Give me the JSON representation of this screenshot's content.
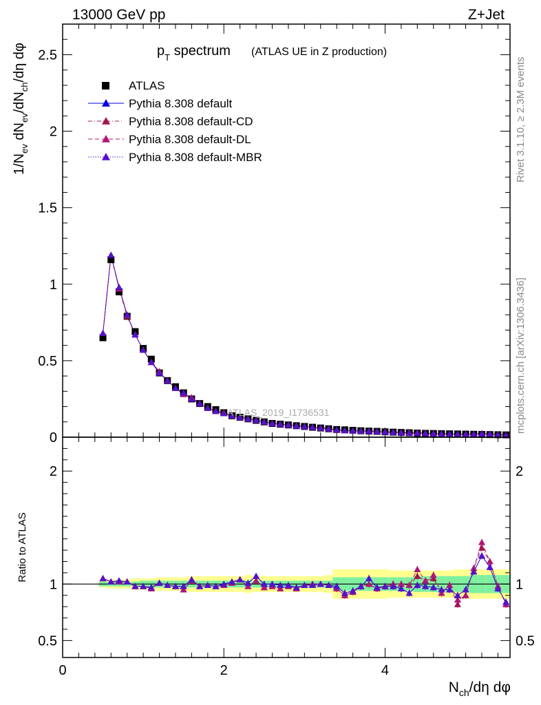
{
  "header": {
    "energy_label": "13000 GeV pp",
    "process_label": "Z+Jet"
  },
  "title": {
    "main_prefix": "p",
    "main_sub": "T",
    "main_suffix": " spectrum",
    "detail": "(ATLAS UE in Z production)"
  },
  "side_labels": {
    "rivet": "Rivet 3.1.10, ≥ 2.3M events",
    "mcplots": "mcplots.cern.ch [arXiv:1306.3436]"
  },
  "watermark": "ATLAS_2019_I1736531",
  "legend": [
    {
      "label": "ATLAS",
      "marker": "square",
      "color": "#000000",
      "line": "none"
    },
    {
      "label": "Pythia 8.308 default",
      "marker": "triangle",
      "color": "#0000dd",
      "line": "solid"
    },
    {
      "label": "Pythia 8.308 default-CD",
      "marker": "triangle",
      "color": "#a0154c",
      "line": "dashdot"
    },
    {
      "label": "Pythia 8.308 default-DL",
      "marker": "triangle",
      "color": "#b0157a",
      "line": "dashed"
    },
    {
      "label": "Pythia 8.308 default-MBR",
      "marker": "triangle",
      "color": "#5511cc",
      "line": "dotted"
    }
  ],
  "colors": {
    "band_inner": "#7ef0a0",
    "band_outer": "#ffff90",
    "data": "#000000"
  },
  "chart_data": [
    {
      "type": "scatter",
      "panel": "main",
      "title": "p_T spectrum (ATLAS UE in Z production)",
      "ylabel": "1/N_ev dN_ev/dN_ch/dη dφ",
      "xlabel": "N_ch/dη dφ",
      "xlim": [
        0,
        5.55
      ],
      "ylim": [
        0,
        2.7
      ],
      "yticks": [
        "0",
        "0.5",
        "1",
        "1.5",
        "2",
        "2.5"
      ],
      "x": [
        0.5,
        0.6,
        0.7,
        0.8,
        0.9,
        1.0,
        1.1,
        1.2,
        1.3,
        1.4,
        1.5,
        1.6,
        1.7,
        1.8,
        1.9,
        2.0,
        2.1,
        2.2,
        2.3,
        2.4,
        2.5,
        2.6,
        2.7,
        2.8,
        2.9,
        3.0,
        3.1,
        3.2,
        3.3,
        3.4,
        3.5,
        3.6,
        3.7,
        3.8,
        3.9,
        4.0,
        4.1,
        4.2,
        4.3,
        4.4,
        4.5,
        4.6,
        4.7,
        4.8,
        4.9,
        5.0,
        5.1,
        5.2,
        5.3,
        5.4,
        5.5
      ],
      "series": [
        {
          "name": "ATLAS",
          "values": [
            0.65,
            1.16,
            0.95,
            0.79,
            0.69,
            0.58,
            0.51,
            0.42,
            0.37,
            0.33,
            0.29,
            0.25,
            0.22,
            0.2,
            0.18,
            0.16,
            0.14,
            0.13,
            0.12,
            0.11,
            0.1,
            0.09,
            0.085,
            0.08,
            0.075,
            0.07,
            0.065,
            0.06,
            0.055,
            0.05,
            0.048,
            0.045,
            0.042,
            0.04,
            0.038,
            0.035,
            0.033,
            0.031,
            0.029,
            0.027,
            0.025,
            0.024,
            0.023,
            0.022,
            0.021,
            0.02,
            0.019,
            0.018,
            0.017,
            0.016,
            0.015
          ]
        },
        {
          "name": "Pythia 8.308 default",
          "values": [
            0.68,
            1.19,
            0.98,
            0.8,
            0.67,
            0.57,
            0.49,
            0.42,
            0.37,
            0.32,
            0.29,
            0.25,
            0.22,
            0.19,
            0.17,
            0.155,
            0.14,
            0.13,
            0.12,
            0.11,
            0.1,
            0.09,
            0.085,
            0.08,
            0.073,
            0.07,
            0.065,
            0.06,
            0.055,
            0.049,
            0.044,
            0.042,
            0.041,
            0.04,
            0.037,
            0.034,
            0.032,
            0.03,
            0.027,
            0.027,
            0.025,
            0.023,
            0.022,
            0.021,
            0.019,
            0.019,
            0.021,
            0.023,
            0.02,
            0.017,
            0.013
          ]
        },
        {
          "name": "Pythia 8.308 default-CD",
          "values": [
            0.68,
            1.19,
            0.97,
            0.79,
            0.67,
            0.57,
            0.49,
            0.43,
            0.37,
            0.32,
            0.28,
            0.26,
            0.22,
            0.19,
            0.17,
            0.16,
            0.14,
            0.13,
            0.12,
            0.11,
            0.1,
            0.09,
            0.086,
            0.08,
            0.074,
            0.069,
            0.065,
            0.06,
            0.055,
            0.047,
            0.044,
            0.042,
            0.041,
            0.04,
            0.037,
            0.035,
            0.033,
            0.031,
            0.029,
            0.029,
            0.026,
            0.024,
            0.022,
            0.021,
            0.019,
            0.019,
            0.021,
            0.024,
            0.02,
            0.017,
            0.013
          ]
        },
        {
          "name": "Pythia 8.308 default-DL",
          "values": [
            0.68,
            1.19,
            0.97,
            0.8,
            0.67,
            0.57,
            0.49,
            0.43,
            0.37,
            0.32,
            0.28,
            0.26,
            0.22,
            0.19,
            0.17,
            0.16,
            0.14,
            0.13,
            0.12,
            0.11,
            0.1,
            0.09,
            0.086,
            0.08,
            0.074,
            0.069,
            0.065,
            0.06,
            0.055,
            0.047,
            0.044,
            0.042,
            0.041,
            0.04,
            0.037,
            0.035,
            0.033,
            0.031,
            0.029,
            0.029,
            0.026,
            0.024,
            0.022,
            0.021,
            0.019,
            0.019,
            0.021,
            0.024,
            0.02,
            0.017,
            0.013
          ]
        },
        {
          "name": "Pythia 8.308 default-MBR",
          "values": [
            0.68,
            1.19,
            0.98,
            0.8,
            0.67,
            0.57,
            0.49,
            0.42,
            0.37,
            0.32,
            0.29,
            0.25,
            0.22,
            0.19,
            0.17,
            0.155,
            0.14,
            0.13,
            0.12,
            0.11,
            0.1,
            0.09,
            0.085,
            0.08,
            0.073,
            0.07,
            0.065,
            0.06,
            0.055,
            0.049,
            0.044,
            0.042,
            0.041,
            0.04,
            0.037,
            0.034,
            0.032,
            0.03,
            0.027,
            0.027,
            0.025,
            0.023,
            0.022,
            0.021,
            0.019,
            0.019,
            0.021,
            0.023,
            0.02,
            0.017,
            0.013
          ]
        }
      ]
    },
    {
      "type": "line",
      "panel": "ratio",
      "ylabel": "Ratio to ATLAS",
      "xlabel": "N_ch/dη dφ",
      "xlim": [
        0,
        5.55
      ],
      "ylim": [
        0.35,
        2.3
      ],
      "yticks": [
        "0.5",
        "1",
        "2"
      ],
      "xticks": [
        "0",
        "2",
        "4"
      ],
      "x": [
        0.5,
        0.6,
        0.7,
        0.8,
        0.9,
        1.0,
        1.1,
        1.2,
        1.3,
        1.4,
        1.5,
        1.6,
        1.7,
        1.8,
        1.9,
        2.0,
        2.1,
        2.2,
        2.3,
        2.4,
        2.5,
        2.6,
        2.7,
        2.8,
        2.9,
        3.0,
        3.1,
        3.2,
        3.3,
        3.4,
        3.5,
        3.6,
        3.7,
        3.8,
        3.9,
        4.0,
        4.1,
        4.2,
        4.3,
        4.4,
        4.5,
        4.6,
        4.7,
        4.8,
        4.9,
        5.0,
        5.1,
        5.2,
        5.3,
        5.4,
        5.5
      ],
      "band_inner": [
        0.02,
        0.02,
        0.02,
        0.02,
        0.02,
        0.03,
        0.03,
        0.03,
        0.03,
        0.03,
        0.03,
        0.03,
        0.03,
        0.03,
        0.03,
        0.03,
        0.03,
        0.03,
        0.03,
        0.03,
        0.03,
        0.03,
        0.03,
        0.03,
        0.03,
        0.03,
        0.03,
        0.03,
        0.03,
        0.06,
        0.06,
        0.06,
        0.06,
        0.06,
        0.06,
        0.06,
        0.06,
        0.06,
        0.06,
        0.07,
        0.07,
        0.07,
        0.07,
        0.07,
        0.07,
        0.07,
        0.08,
        0.08,
        0.08,
        0.08,
        0.08
      ],
      "band_outer": [
        0.03,
        0.04,
        0.04,
        0.04,
        0.05,
        0.05,
        0.05,
        0.06,
        0.06,
        0.06,
        0.06,
        0.07,
        0.07,
        0.07,
        0.07,
        0.07,
        0.07,
        0.07,
        0.08,
        0.07,
        0.07,
        0.07,
        0.07,
        0.07,
        0.07,
        0.07,
        0.07,
        0.07,
        0.08,
        0.13,
        0.13,
        0.13,
        0.13,
        0.13,
        0.13,
        0.13,
        0.12,
        0.12,
        0.12,
        0.12,
        0.12,
        0.12,
        0.12,
        0.12,
        0.13,
        0.13,
        0.13,
        0.13,
        0.13,
        0.13,
        0.13
      ],
      "series": [
        {
          "name": "Pythia 8.308 default",
          "values": [
            1.05,
            1.02,
            1.03,
            1.02,
            0.98,
            0.98,
            0.97,
            1.01,
            0.99,
            0.98,
            0.98,
            1.04,
            0.98,
            0.99,
            0.98,
            1.0,
            1.02,
            1.04,
            1.01,
            1.07,
            1.0,
            1.0,
            0.99,
            0.99,
            0.97,
            0.99,
            0.99,
            1.0,
            0.99,
            0.98,
            0.92,
            0.94,
            0.98,
            1.05,
            0.97,
            0.98,
            0.98,
            0.96,
            0.92,
            0.99,
            0.98,
            0.97,
            0.95,
            0.95,
            0.9,
            0.95,
            1.11,
            1.25,
            1.15,
            0.96,
            0.84
          ]
        },
        {
          "name": "Pythia 8.308 default-CD",
          "values": [
            1.05,
            1.02,
            1.02,
            1.02,
            0.98,
            0.98,
            0.96,
            1.01,
            0.99,
            0.98,
            0.95,
            1.03,
            0.98,
            0.99,
            0.98,
            0.99,
            1.01,
            1.04,
            0.98,
            1.03,
            0.97,
            0.98,
            0.96,
            0.98,
            0.96,
            0.99,
            1.0,
            1.0,
            0.99,
            0.96,
            0.9,
            0.93,
            0.98,
            1.0,
            0.96,
            0.98,
            1.0,
            1.0,
            0.99,
            1.07,
            1.03,
            1.05,
            0.92,
            0.99,
            0.82,
            0.9,
            1.14,
            1.32,
            1.2,
            0.98,
            0.82
          ]
        },
        {
          "name": "Pythia 8.308 default-DL",
          "values": [
            1.05,
            1.02,
            1.02,
            1.02,
            0.98,
            0.98,
            0.96,
            1.01,
            0.99,
            0.98,
            0.95,
            1.03,
            0.98,
            0.99,
            0.98,
            0.99,
            1.01,
            1.04,
            0.98,
            1.03,
            0.97,
            0.98,
            0.96,
            0.98,
            0.96,
            0.99,
            1.0,
            1.0,
            0.99,
            0.96,
            0.9,
            0.93,
            0.98,
            1.0,
            0.96,
            0.98,
            1.0,
            1.0,
            0.99,
            1.13,
            1.03,
            1.08,
            0.92,
            0.99,
            0.86,
            0.9,
            1.14,
            1.37,
            1.2,
            0.98,
            0.82
          ]
        },
        {
          "name": "Pythia 8.308 default-MBR",
          "values": [
            1.05,
            1.02,
            1.03,
            1.02,
            0.98,
            0.98,
            0.97,
            1.01,
            0.99,
            0.98,
            0.98,
            1.04,
            0.98,
            0.99,
            0.98,
            1.0,
            1.02,
            1.04,
            1.01,
            1.07,
            1.0,
            1.0,
            0.99,
            0.99,
            0.97,
            0.99,
            0.99,
            1.0,
            0.99,
            0.98,
            0.92,
            0.94,
            0.98,
            1.05,
            0.97,
            0.98,
            0.98,
            0.96,
            0.92,
            0.99,
            0.98,
            0.97,
            0.95,
            0.95,
            0.9,
            0.95,
            1.11,
            1.25,
            1.15,
            0.96,
            0.84
          ]
        }
      ]
    }
  ]
}
